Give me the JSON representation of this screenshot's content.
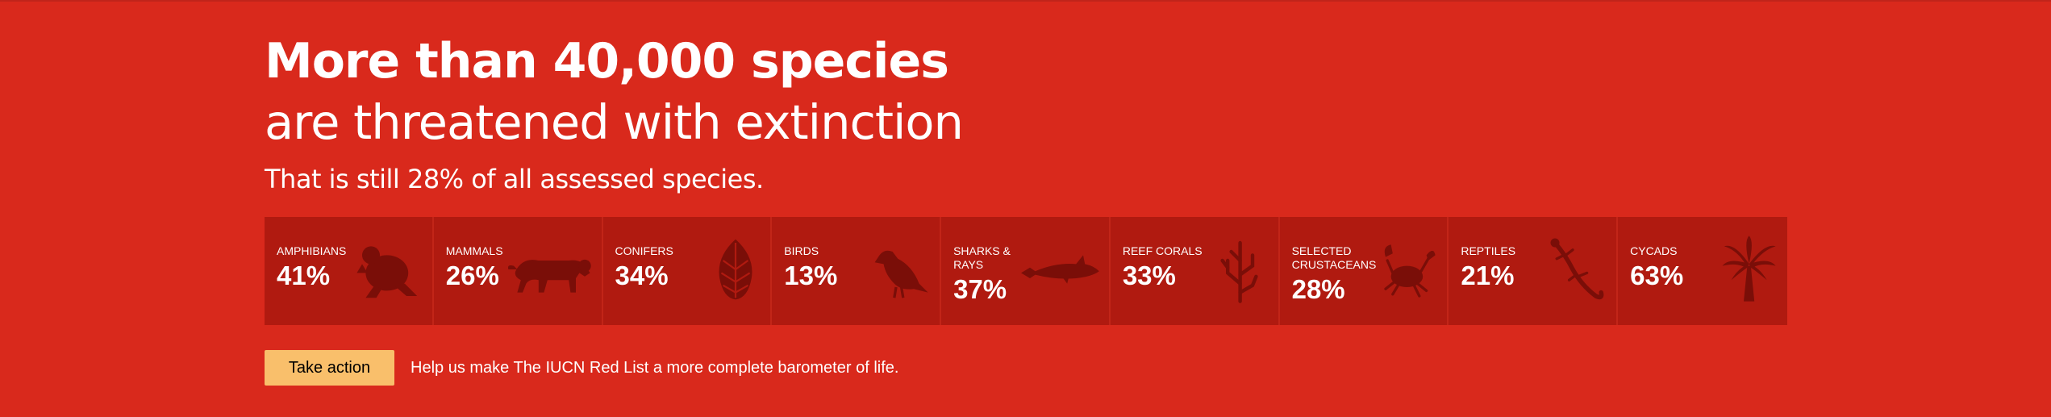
{
  "hero": {
    "headline": "More than 40,000 species",
    "subheadline": "are threatened with extinction",
    "tagline": "That is still 28% of all assessed species."
  },
  "stats": [
    {
      "label": "Amphibians",
      "value": "41%",
      "icon": "frog-icon"
    },
    {
      "label": "Mammals",
      "value": "26%",
      "icon": "tiger-icon"
    },
    {
      "label": "Conifers",
      "value": "34%",
      "icon": "pinecone-icon"
    },
    {
      "label": "Birds",
      "value": "13%",
      "icon": "bird-icon"
    },
    {
      "label": "Sharks & Rays",
      "value": "37%",
      "icon": "shark-icon"
    },
    {
      "label": "Reef Corals",
      "value": "33%",
      "icon": "coral-icon"
    },
    {
      "label": "Selected Crustaceans",
      "value": "28%",
      "icon": "crab-icon"
    },
    {
      "label": "Reptiles",
      "value": "21%",
      "icon": "lizard-icon"
    },
    {
      "label": "Cycads",
      "value": "63%",
      "icon": "palm-icon"
    }
  ],
  "cta": {
    "button_label": "Take action",
    "text": "Help us make The IUCN Red List a more complete barometer of life."
  },
  "colors": {
    "background": "#d9291c",
    "panel": "#b01a10",
    "icon": "#7a0e08",
    "button": "#f9bf6b"
  }
}
